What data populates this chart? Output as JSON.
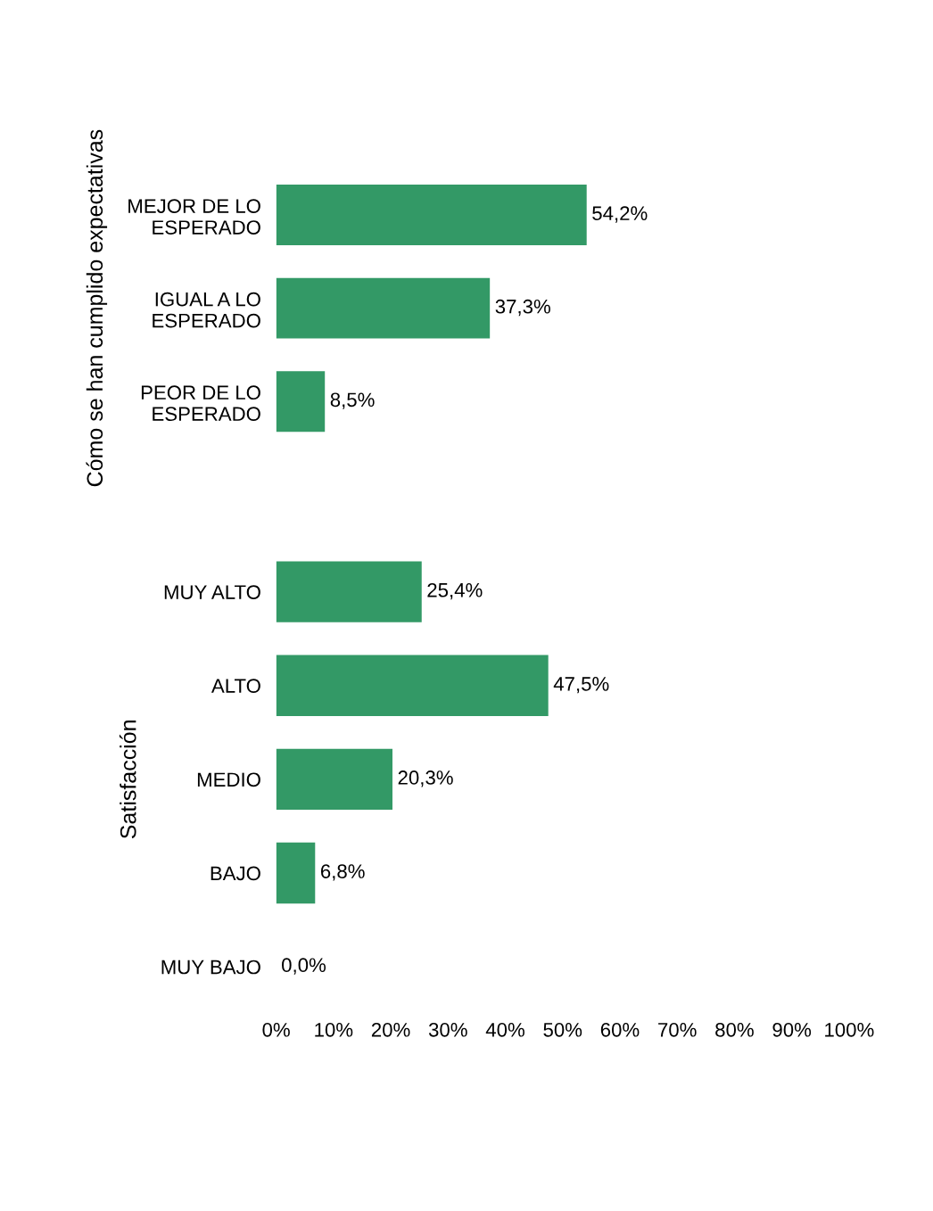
{
  "chart_data": [
    {
      "type": "bar",
      "orientation": "horizontal",
      "ylabel": "Cómo se han cumplido expectativas",
      "categories": [
        "MEJOR DE LO\nESPERADO",
        "IGUAL A LO\nESPERADO",
        "PEOR DE LO\nESPERADO"
      ],
      "values": [
        54.2,
        37.3,
        8.5
      ],
      "value_labels": [
        "54,2%",
        "37,3%",
        "8,5%"
      ],
      "color": "#339966",
      "xlim": [
        0,
        100
      ],
      "tick_labels": "y",
      "grid": false,
      "legend": false
    },
    {
      "type": "bar",
      "orientation": "horizontal",
      "ylabel": "Satisfacción",
      "categories": [
        "MUY ALTO",
        "ALTO",
        "MEDIO",
        "BAJO",
        "MUY BAJO"
      ],
      "values": [
        25.4,
        47.5,
        20.3,
        6.8,
        0.0
      ],
      "value_labels": [
        "25,4%",
        "47,5%",
        "20,3%",
        "6,8%",
        "0,0%"
      ],
      "color": "#339966",
      "xlim": [
        0,
        100
      ],
      "xticks": [
        {
          "value": 0,
          "label": "0%"
        },
        {
          "value": 10,
          "label": "10%"
        },
        {
          "value": 20,
          "label": "20%"
        },
        {
          "value": 30,
          "label": "30%"
        },
        {
          "value": 40,
          "label": "40%"
        },
        {
          "value": 50,
          "label": "50%"
        },
        {
          "value": 60,
          "label": "60%"
        },
        {
          "value": 70,
          "label": "70%"
        },
        {
          "value": 80,
          "label": "80%"
        },
        {
          "value": 90,
          "label": "90%"
        },
        {
          "value": 100,
          "label": "100%"
        }
      ],
      "grid": false,
      "legend": false
    }
  ]
}
